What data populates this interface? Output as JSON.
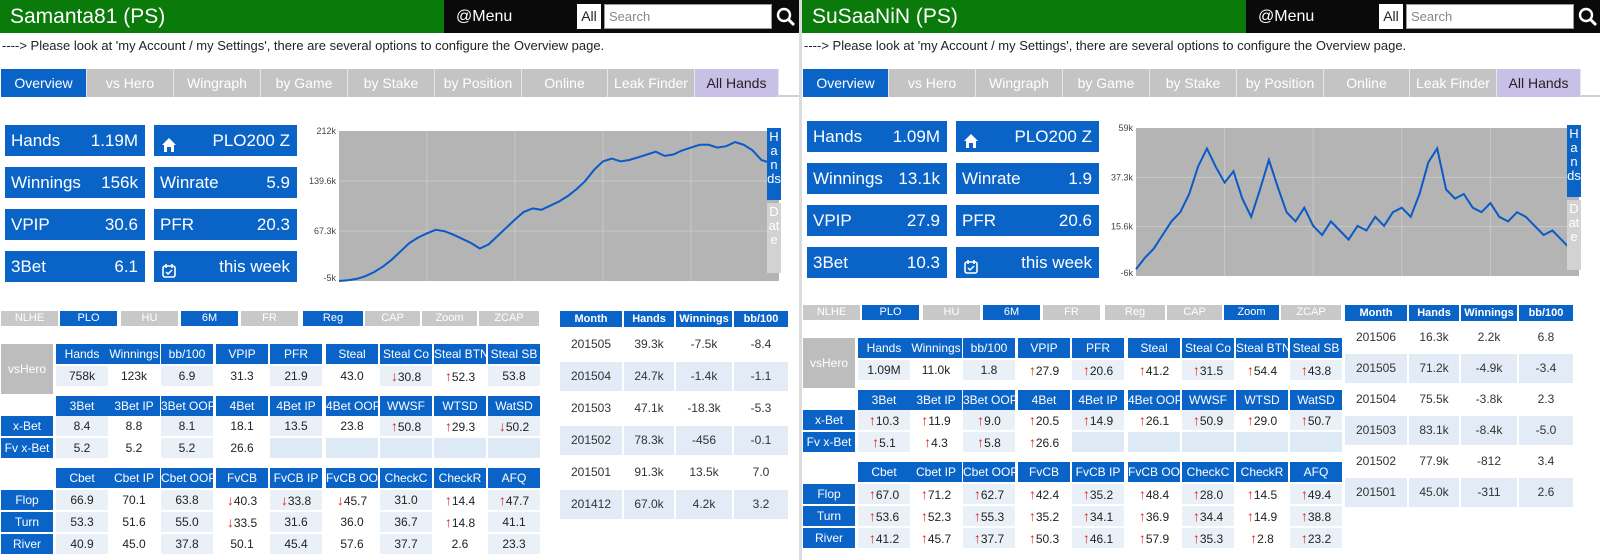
{
  "menu_label": "@Menu",
  "all_label": "All",
  "search_placeholder": "Search",
  "hint": "----> Please look at 'my Account / my Settings', there are several options to configure the Overview page.",
  "nav_tabs": [
    "Overview",
    "vs Hero",
    "Wingraph",
    "by Game",
    "by Stake",
    "by Position",
    "Online",
    "Leak Finder",
    "All Hands"
  ],
  "side_hands": "Hands",
  "side_date": "Date",
  "filters": {
    "game": [
      "NLHE",
      "PLO"
    ],
    "size": [
      "HU",
      "6M",
      "FR"
    ],
    "type": [
      "Reg",
      "CAP",
      "Zoom",
      "ZCAP"
    ]
  },
  "colors": {
    "green": "#0a7a0a",
    "blue": "#0a64c8",
    "gray": "#c4c4c4",
    "lavender": "#c9c0e8",
    "red_arrow": "#e0231c"
  },
  "row_labels": {
    "vshero": "vsHero",
    "xbet": "x-Bet",
    "fvxbet": "Fv x-Bet",
    "flop": "Flop",
    "turn": "Turn",
    "river": "River"
  },
  "hdr1": [
    "Hands",
    "Winnings",
    "bb/100",
    "VPIP",
    "PFR",
    "Steal",
    "Steal Co",
    "Steal BTN",
    "Steal SB"
  ],
  "hdr2": [
    "3Bet",
    "3Bet IP",
    "3Bet OOP",
    "4Bet",
    "4Bet IP",
    "4Bet OOP",
    "WWSF",
    "WTSD",
    "WatSD"
  ],
  "hdr3": [
    "Cbet",
    "Cbet IP",
    "Cbet OOP",
    "FvCB",
    "FvCB IP",
    "FvCB OOP",
    "CheckC",
    "CheckR",
    "AFQ"
  ],
  "month_hdr": [
    "Month",
    "Hands",
    "Winnings",
    "bb/100"
  ],
  "players": [
    {
      "name": "Samanta81 (PS)",
      "stats": {
        "hands": "1.19M",
        "winnings": "156k",
        "vpip": "30.6",
        "threebet": "6.1",
        "stake": "PLO200 Z",
        "winrate": "5.9",
        "pfr": "20.3",
        "period": "this week"
      },
      "stat_labels": {
        "hands": "Hands",
        "winnings": "Winnings",
        "vpip": "VPIP",
        "threebet": "3Bet",
        "winrate": "Winrate",
        "pfr": "PFR"
      },
      "filters_active": {
        "game": "PLO",
        "size": "6M",
        "type": "Reg"
      },
      "chart_data": {
        "type": "line",
        "title": "",
        "ylabels": [
          "212k",
          "139.6k",
          "67.3k",
          "-5k"
        ],
        "ylim": [
          -5000,
          212000
        ],
        "grid": true,
        "values": [
          -5000,
          -4000,
          -2000,
          2000,
          8000,
          16000,
          26000,
          38000,
          50000,
          58000,
          64000,
          69000,
          67000,
          62000,
          56000,
          50000,
          42000,
          48000,
          60000,
          72000,
          84000,
          95000,
          100000,
          98000,
          104000,
          110000,
          118000,
          128000,
          140000,
          156000,
          168000,
          172000,
          168000,
          170000,
          174000,
          178000,
          182000,
          176000,
          178000,
          184000,
          188000,
          192000,
          192000,
          188000,
          190000,
          196000,
          192000,
          184000,
          170000,
          166000,
          172000
        ]
      },
      "vshero_vals": [
        "758k",
        "123k",
        "6.9",
        "31.3",
        "21.9",
        "43.0",
        "30.8",
        "52.3",
        "53.8"
      ],
      "vshero_arrows": [
        "",
        "",
        "",
        "",
        "",
        "",
        "down",
        "up",
        ""
      ],
      "xbet_vals": [
        "8.4",
        "8.8",
        "8.1",
        "18.1",
        "13.5",
        "23.8",
        "50.8",
        "29.3",
        "50.2"
      ],
      "xbet_arrows": [
        "",
        "",
        "",
        "",
        "",
        "",
        "up",
        "up",
        "down"
      ],
      "fvxbet_vals": [
        "5.2",
        "5.2",
        "5.2",
        "26.6",
        "",
        "",
        "",
        "",
        ""
      ],
      "fvxbet_arrows": [
        "",
        "",
        "",
        "",
        "",
        "",
        "",
        "",
        ""
      ],
      "flop_vals": [
        "66.9",
        "70.1",
        "63.8",
        "40.3",
        "33.8",
        "45.7",
        "31.0",
        "14.4",
        "47.7"
      ],
      "flop_arrows": [
        "",
        "",
        "",
        "down",
        "down",
        "down",
        "",
        "up",
        "up"
      ],
      "turn_vals": [
        "53.3",
        "51.6",
        "55.0",
        "33.5",
        "31.6",
        "36.0",
        "36.7",
        "14.8",
        "41.1"
      ],
      "turn_arrows": [
        "",
        "",
        "",
        "down",
        "",
        "",
        "",
        "up",
        ""
      ],
      "river_vals": [
        "40.9",
        "45.0",
        "37.8",
        "50.1",
        "45.4",
        "57.6",
        "37.7",
        "2.6",
        "23.3"
      ],
      "river_arrows": [
        "",
        "",
        "",
        "",
        "",
        "",
        "",
        "",
        ""
      ],
      "months": [
        [
          "201505",
          "39.3k",
          "-7.5k",
          "-8.4"
        ],
        [
          "201504",
          "24.7k",
          "-1.4k",
          "-1.1"
        ],
        [
          "201503",
          "47.1k",
          "-18.3k",
          "-5.3"
        ],
        [
          "201502",
          "78.3k",
          "-456",
          "-0.1"
        ],
        [
          "201501",
          "91.3k",
          "13.5k",
          "7.0"
        ],
        [
          "201412",
          "67.0k",
          "4.2k",
          "3.2"
        ]
      ]
    },
    {
      "name": "SuSaaNiN (PS)",
      "stats": {
        "hands": "1.09M",
        "winnings": "13.1k",
        "vpip": "27.9",
        "threebet": "10.3",
        "stake": "PLO200 Z",
        "winrate": "1.9",
        "pfr": "20.6",
        "period": "this week"
      },
      "stat_labels": {
        "hands": "Hands",
        "winnings": "Winnings",
        "vpip": "VPIP",
        "threebet": "3Bet",
        "winrate": "Winrate",
        "pfr": "PFR"
      },
      "filters_active": {
        "game": "PLO",
        "size": "6M",
        "type": "Zoom"
      },
      "chart_data": {
        "type": "line",
        "title": "",
        "ylabels": [
          "59k",
          "37.3k",
          "15.6k",
          "-6k"
        ],
        "ylim": [
          -6000,
          59000
        ],
        "grid": true,
        "values": [
          -3000,
          2000,
          6000,
          12000,
          18000,
          22000,
          30000,
          42000,
          50000,
          42000,
          35000,
          40000,
          28000,
          20000,
          32000,
          45000,
          33000,
          22000,
          18000,
          24000,
          16000,
          12000,
          18000,
          14000,
          10000,
          16000,
          14000,
          20000,
          16000,
          22000,
          24000,
          20000,
          30000,
          44000,
          50000,
          32000,
          28000,
          30000,
          24000,
          22000,
          26000,
          20000,
          18000,
          22000,
          20000,
          16000,
          12000,
          14000,
          10000,
          6000,
          12000
        ]
      },
      "vshero_vals": [
        "1.09M",
        "11.0k",
        "1.8",
        "27.9",
        "20.6",
        "41.2",
        "31.5",
        "54.4",
        "43.8"
      ],
      "vshero_arrows": [
        "",
        "",
        "",
        "up",
        "up",
        "up",
        "up",
        "up",
        "up"
      ],
      "xbet_vals": [
        "10.3",
        "11.9",
        "9.0",
        "20.5",
        "14.9",
        "26.1",
        "50.9",
        "29.0",
        "50.7"
      ],
      "xbet_arrows": [
        "up",
        "up",
        "up",
        "up",
        "up",
        "up",
        "up",
        "up",
        "up"
      ],
      "fvxbet_vals": [
        "5.1",
        "4.3",
        "5.8",
        "26.6",
        "",
        "",
        "",
        "",
        ""
      ],
      "fvxbet_arrows": [
        "up",
        "up",
        "up",
        "up",
        "",
        "",
        "",
        "",
        ""
      ],
      "flop_vals": [
        "67.0",
        "71.2",
        "62.7",
        "42.4",
        "35.2",
        "48.4",
        "28.0",
        "14.5",
        "49.4"
      ],
      "flop_arrows": [
        "up",
        "up",
        "up",
        "up",
        "up",
        "up",
        "up",
        "up",
        "up"
      ],
      "turn_vals": [
        "53.6",
        "52.3",
        "55.3",
        "35.2",
        "34.1",
        "36.9",
        "34.4",
        "14.9",
        "38.8"
      ],
      "turn_arrows": [
        "up",
        "up",
        "up",
        "up",
        "up",
        "up",
        "up",
        "up",
        "up"
      ],
      "river_vals": [
        "41.2",
        "45.7",
        "37.7",
        "50.3",
        "46.1",
        "57.9",
        "35.3",
        "2.8",
        "23.2"
      ],
      "river_arrows": [
        "up",
        "up",
        "up",
        "up",
        "up",
        "up",
        "up",
        "up",
        "up"
      ],
      "months": [
        [
          "201506",
          "16.3k",
          "2.2k",
          "6.8"
        ],
        [
          "201505",
          "71.2k",
          "-4.9k",
          "-3.4"
        ],
        [
          "201504",
          "75.5k",
          "-3.8k",
          "2.3"
        ],
        [
          "201503",
          "83.1k",
          "-8.4k",
          "-5.0"
        ],
        [
          "201502",
          "77.9k",
          "-812",
          "3.4"
        ],
        [
          "201501",
          "45.0k",
          "-311",
          "2.6"
        ]
      ]
    }
  ]
}
